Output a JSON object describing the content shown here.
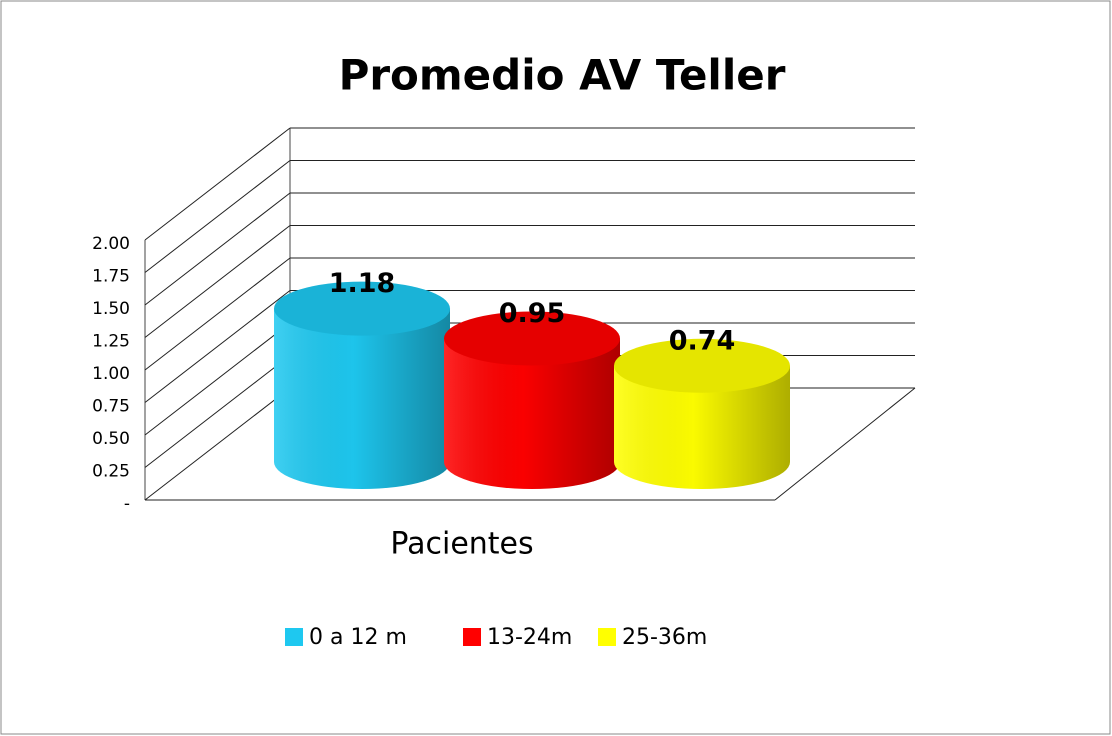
{
  "chart_data": {
    "type": "cylinder",
    "title": "Promedio AV Teller",
    "categories": [
      "Pacientes"
    ],
    "series": [
      {
        "name": "0 a 12 m",
        "color": "#1ec8f0",
        "values": [
          1.18
        ]
      },
      {
        "name": "13-24m",
        "color": "#ff0000",
        "values": [
          0.95
        ]
      },
      {
        "name": "25-36m",
        "color": "#ffff00",
        "values": [
          0.74
        ]
      }
    ],
    "ylim": [
      0,
      2
    ],
    "yticks": [
      {
        "value": 0,
        "label": "-"
      },
      0.25,
      {
        "value": 0.5,
        "label": "0.50"
      },
      0.75,
      {
        "value": 1,
        "label": "1.00"
      },
      1.25,
      {
        "value": 1.5,
        "label": "1.50"
      },
      1.75,
      {
        "value": 2,
        "label": "2.00"
      }
    ],
    "grid": true,
    "legend": "bottom"
  }
}
